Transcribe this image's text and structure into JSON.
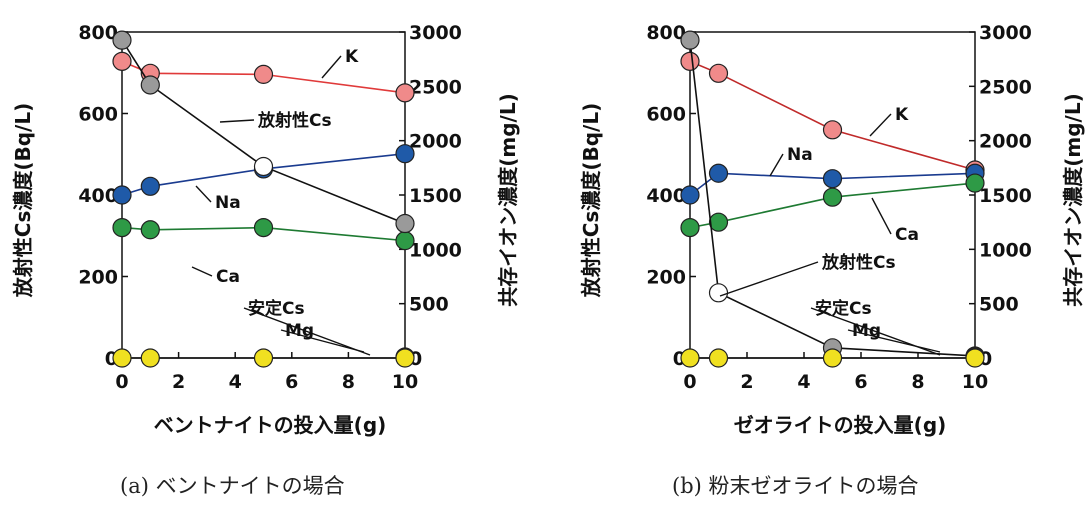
{
  "chart_data": [
    {
      "type": "line",
      "caption": "(a) ベントナイトの場合",
      "xlabel": "ベントナイトの投入量(g)",
      "ylabel_left": "放射性Cs濃度(Bq/L)",
      "ylabel_right": "共存イオン濃度(mg/L)",
      "xticks": [
        "0",
        "2",
        "4",
        "6",
        "8",
        "10"
      ],
      "yticks_left": [
        "0",
        "200",
        "400",
        "600",
        "800"
      ],
      "yticks_right": [
        "0",
        "500",
        "1000",
        "1500",
        "2000",
        "2500",
        "3000"
      ],
      "xlim": [
        0,
        10
      ],
      "ylim_left": [
        0,
        800
      ],
      "ylim_right": [
        0,
        3000
      ],
      "series": [
        {
          "name": "K",
          "axis": "right",
          "color": "#e03a3a",
          "fill": "#f08a8a",
          "x": [
            0,
            1,
            5,
            10
          ],
          "y": [
            2730,
            2620,
            2610,
            2440
          ],
          "label": "K"
        },
        {
          "name": "Na",
          "axis": "right",
          "color": "#1a3b8f",
          "fill": "#1f5aa8",
          "x": [
            0,
            1,
            5,
            10
          ],
          "y": [
            1500,
            1580,
            1740,
            1880
          ],
          "label": "Na"
        },
        {
          "name": "Ca",
          "axis": "right",
          "color": "#1e7a32",
          "fill": "#2e9a46",
          "x": [
            0,
            1,
            5,
            10
          ],
          "y": [
            1200,
            1180,
            1200,
            1080
          ],
          "label": "Ca"
        },
        {
          "name": "放射性Cs",
          "axis": "left",
          "color": "#111111",
          "fill": "#9a9a9a",
          "x": [
            0,
            1,
            5,
            10
          ],
          "y": [
            780,
            670,
            470,
            330
          ],
          "hollow": [
            false,
            false,
            true,
            false
          ],
          "label": "放射性Cs"
        },
        {
          "name": "Mg",
          "axis": "right",
          "color": "#111111",
          "fill": "#8a8aa0",
          "x": [
            10
          ],
          "y": [
            10
          ],
          "label": "Mg"
        },
        {
          "name": "安定Cs",
          "axis": "right",
          "color": "#111111",
          "fill": "#f0e020",
          "x": [
            0,
            1,
            5,
            10
          ],
          "y": [
            0,
            0,
            0,
            0
          ],
          "label": "安定Cs"
        }
      ]
    },
    {
      "type": "line",
      "caption": "(b) 粉末ゼオライトの場合",
      "xlabel": "ゼオライトの投入量(g)",
      "ylabel_left": "放射性Cs濃度(Bq/L)",
      "ylabel_right": "共存イオン濃度(mg/L)",
      "xticks": [
        "0",
        "2",
        "4",
        "6",
        "8",
        "10"
      ],
      "yticks_left": [
        "0",
        "200",
        "400",
        "600",
        "800"
      ],
      "yticks_right": [
        "0",
        "500",
        "1000",
        "1500",
        "2000",
        "2500",
        "3000"
      ],
      "xlim": [
        0,
        10
      ],
      "ylim_left": [
        0,
        800
      ],
      "ylim_right": [
        0,
        3000
      ],
      "series": [
        {
          "name": "K",
          "axis": "right",
          "color": "#c02a2a",
          "fill": "#f08a8a",
          "x": [
            0,
            1,
            5,
            10
          ],
          "y": [
            2730,
            2620,
            2100,
            1730
          ],
          "label": "K"
        },
        {
          "name": "Na",
          "axis": "right",
          "color": "#1a3b8f",
          "fill": "#1f5aa8",
          "x": [
            0,
            1,
            5,
            10
          ],
          "y": [
            1500,
            1700,
            1650,
            1700
          ],
          "label": "Na"
        },
        {
          "name": "Ca",
          "axis": "right",
          "color": "#1e7a32",
          "fill": "#2e9a46",
          "x": [
            0,
            1,
            5,
            10
          ],
          "y": [
            1200,
            1250,
            1480,
            1610
          ],
          "label": "Ca"
        },
        {
          "name": "放射性Cs",
          "axis": "left",
          "color": "#111111",
          "fill": "#9a9a9a",
          "x": [
            0,
            1,
            5,
            10
          ],
          "y": [
            780,
            160,
            25,
            5
          ],
          "hollow": [
            false,
            true,
            false,
            false
          ],
          "label": "放射性Cs"
        },
        {
          "name": "Mg",
          "axis": "right",
          "color": "#111111",
          "fill": "#8a8aa0",
          "x": [
            10
          ],
          "y": [
            10
          ],
          "label": "Mg"
        },
        {
          "name": "安定Cs",
          "axis": "right",
          "color": "#111111",
          "fill": "#f0e020",
          "x": [
            0,
            1,
            5,
            10
          ],
          "y": [
            0,
            0,
            0,
            0
          ],
          "label": "安定Cs"
        }
      ]
    }
  ]
}
